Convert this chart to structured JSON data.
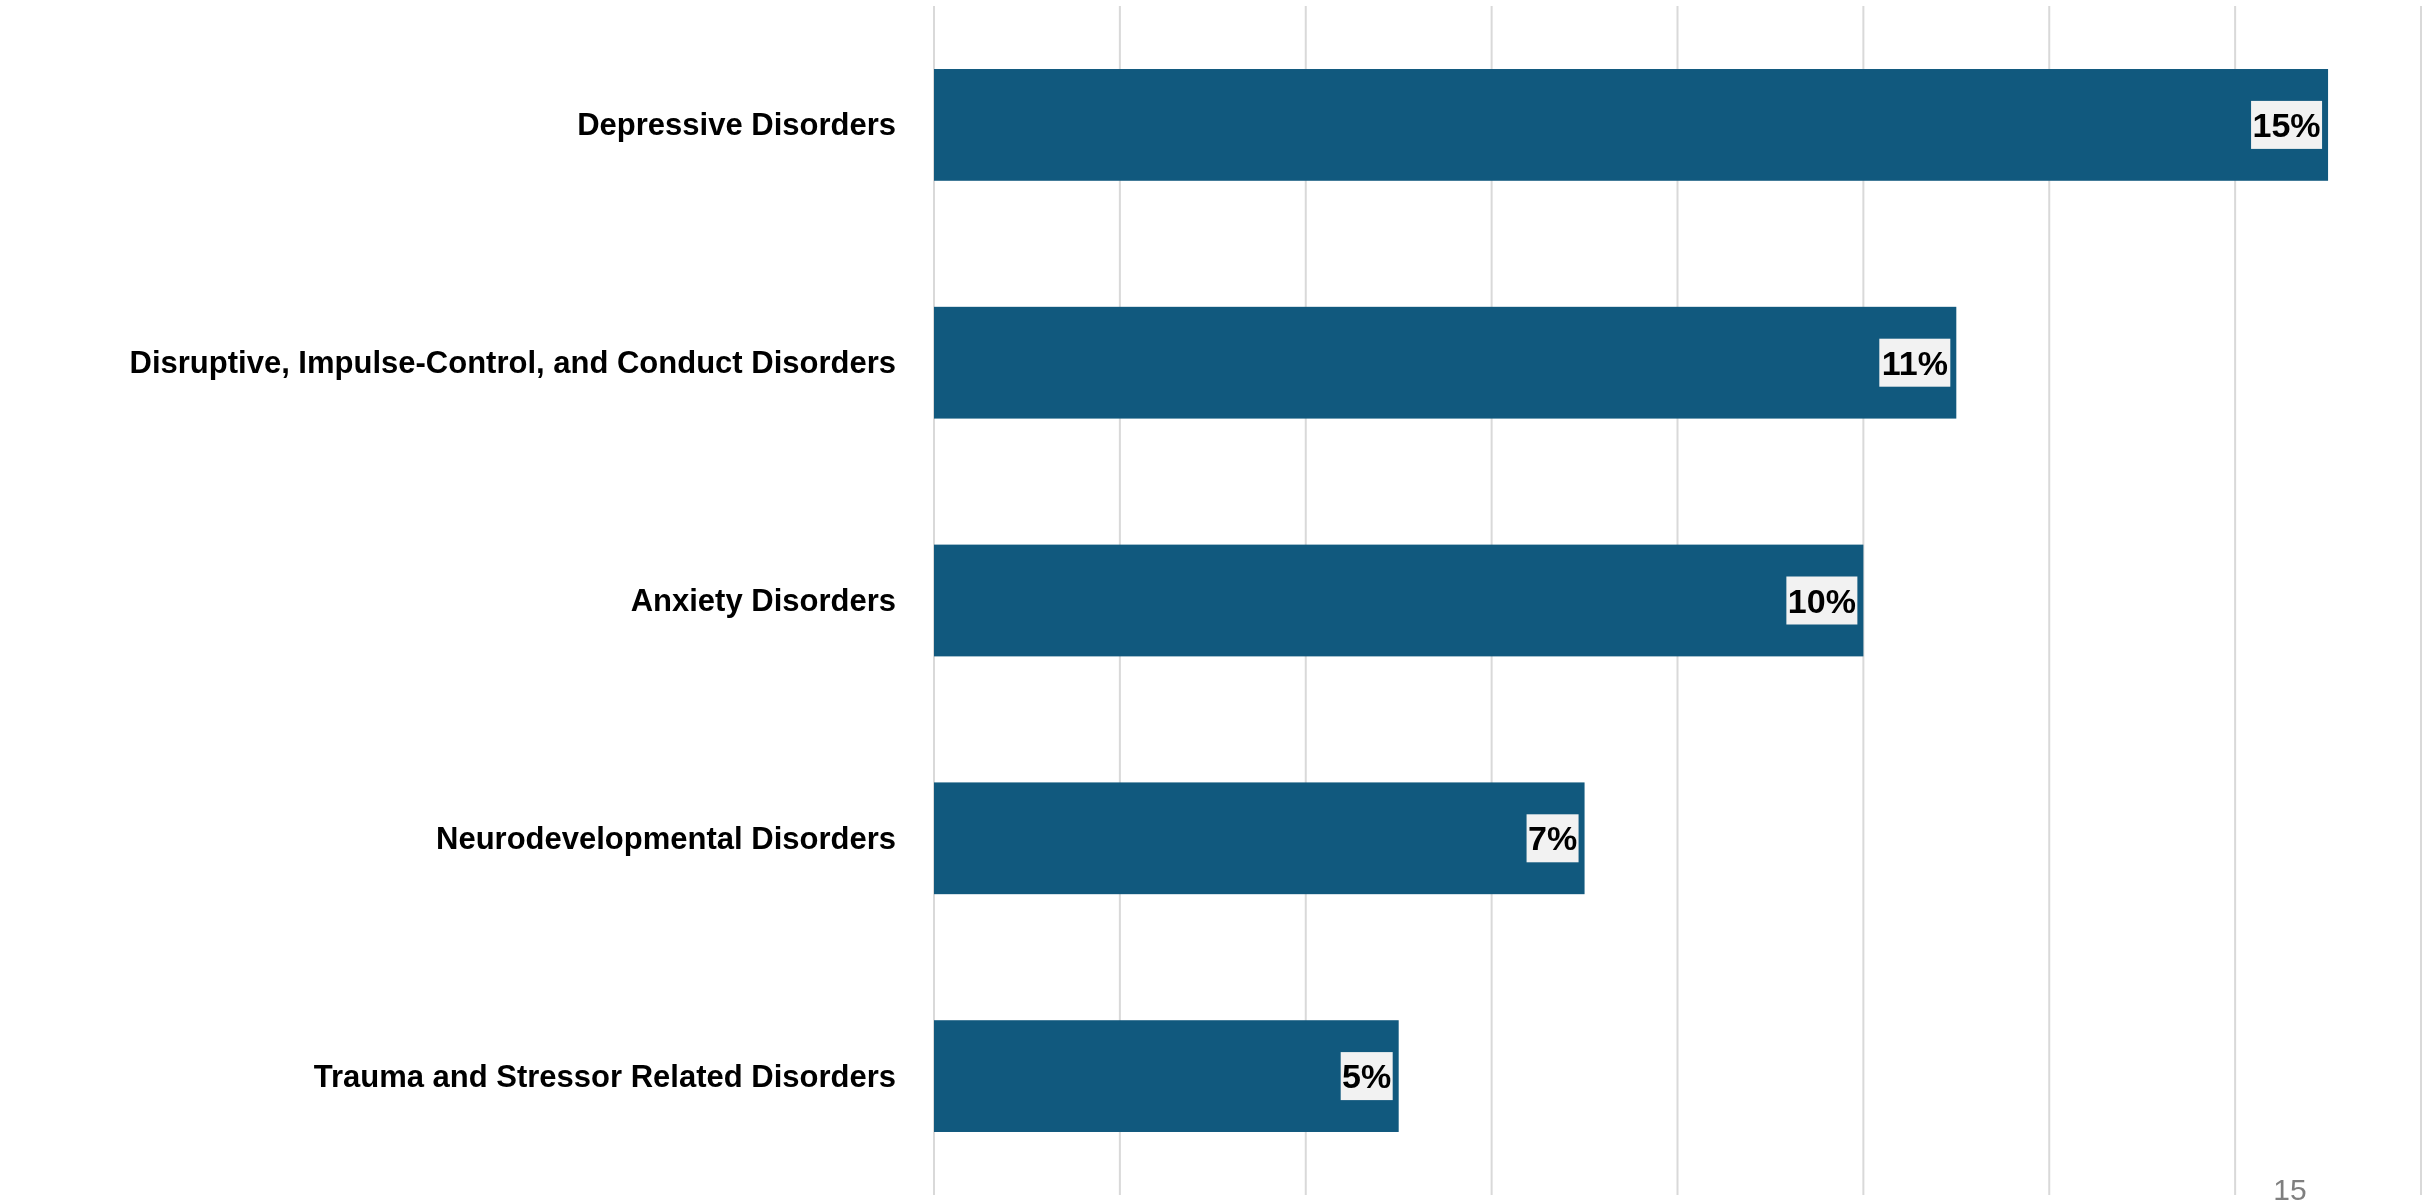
{
  "chart_data": {
    "type": "bar",
    "orientation": "horizontal",
    "categories": [
      "Depressive Disorders",
      "Disruptive, Impulse-Control, and Conduct Disorders",
      "Anxiety Disorders",
      "Neurodevelopmental Disorders",
      "Trauma and Stressor Related Disorders"
    ],
    "values": [
      15,
      11,
      10,
      7,
      5
    ],
    "value_labels": [
      "15%",
      "11%",
      "10%",
      "7%",
      "5%"
    ],
    "color": "#11597e",
    "xlim": [
      0,
      16
    ],
    "xticks": [
      {
        "value": 0,
        "label": null
      },
      {
        "value": 2,
        "label": null
      },
      {
        "value": 4,
        "label": null
      },
      {
        "value": 6,
        "label": null
      },
      {
        "value": 8,
        "label": null
      },
      {
        "value": 10,
        "label": null
      },
      {
        "value": 12,
        "label": null
      },
      {
        "value": 14,
        "label": null
      },
      {
        "value": 16,
        "label": null
      }
    ],
    "grid": "x",
    "tick_labels": "y",
    "annotations": [
      "15"
    ]
  }
}
